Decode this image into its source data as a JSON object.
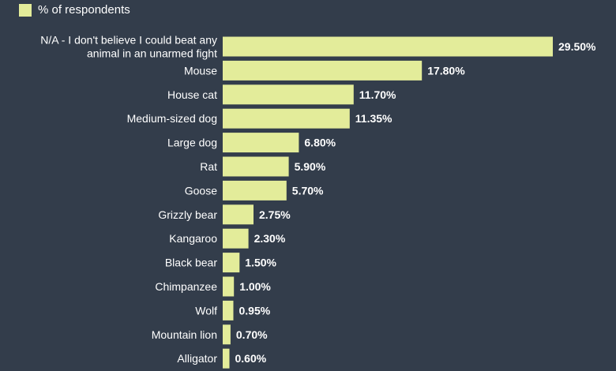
{
  "colors": {
    "background": "#333d4b",
    "bar": "#e3ec9a",
    "text": "#ffffff"
  },
  "legend": {
    "label": "% of respondents"
  },
  "chart_data": {
    "type": "bar",
    "orientation": "horizontal",
    "title": "",
    "xlabel": "",
    "ylabel": "",
    "grid": false,
    "legend_position": "top-left",
    "xlim": [
      0,
      30
    ],
    "categories": [
      "N/A - I don't believe I could beat any animal in an unarmed fight",
      "Mouse",
      "House cat",
      "Medium-sized dog",
      "Large dog",
      "Rat",
      "Goose",
      "Grizzly bear",
      "Kangaroo",
      "Black bear",
      "Chimpanzee",
      "Wolf",
      "Mountain lion",
      "Alligator"
    ],
    "category_lines": [
      [
        "N/A - I don't believe I could beat any",
        "animal in an unarmed fight"
      ],
      [
        "Mouse"
      ],
      [
        "House cat"
      ],
      [
        "Medium-sized dog"
      ],
      [
        "Large dog"
      ],
      [
        "Rat"
      ],
      [
        "Goose"
      ],
      [
        "Grizzly bear"
      ],
      [
        "Kangaroo"
      ],
      [
        "Black bear"
      ],
      [
        "Chimpanzee"
      ],
      [
        "Wolf"
      ],
      [
        "Mountain lion"
      ],
      [
        "Alligator"
      ]
    ],
    "series": [
      {
        "name": "% of respondents",
        "values": [
          29.5,
          17.8,
          11.7,
          11.35,
          6.8,
          5.9,
          5.7,
          2.75,
          2.3,
          1.5,
          1.0,
          0.95,
          0.7,
          0.6
        ]
      }
    ],
    "value_labels": [
      "29.50%",
      "17.80%",
      "11.70%",
      "11.35%",
      "6.80%",
      "5.90%",
      "5.70%",
      "2.75%",
      "2.30%",
      "1.50%",
      "1.00%",
      "0.95%",
      "0.70%",
      "0.60%"
    ]
  }
}
